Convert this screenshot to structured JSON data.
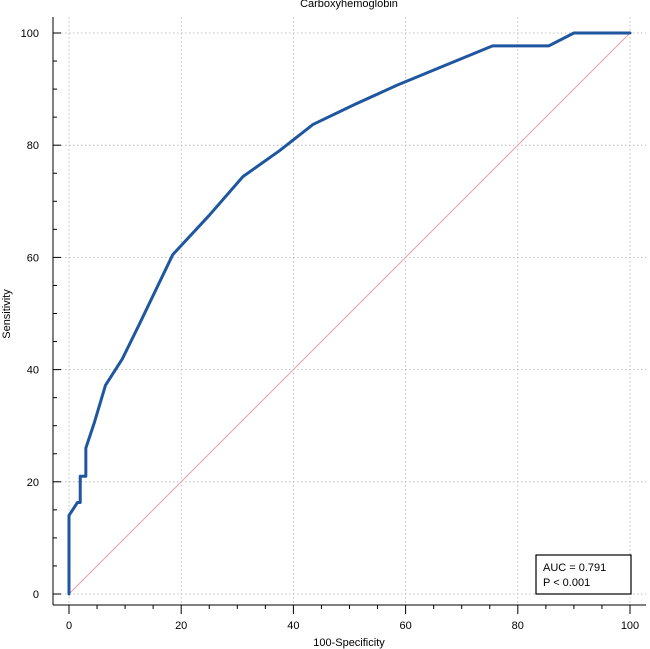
{
  "chart_data": {
    "type": "line",
    "title": "Carboxyhemoglobin",
    "xlabel": "100-Specificity",
    "ylabel": "Sensitivity",
    "xlim": [
      0,
      100
    ],
    "ylim": [
      0,
      100
    ],
    "xticks": [
      0,
      20,
      40,
      60,
      80,
      100
    ],
    "yticks": [
      0,
      20,
      40,
      60,
      80,
      100
    ],
    "grid": true,
    "series": [
      {
        "color": "#1f56a0",
        "x": [
          0,
          0,
          1.5,
          2,
          2,
          3,
          3,
          4.5,
          6.5,
          9.5,
          12.5,
          18.5,
          25,
          31,
          37.5,
          43.5,
          51,
          58.5,
          66.5,
          75.5,
          85.5,
          90,
          100
        ],
        "y": [
          0,
          14,
          16.3,
          16.3,
          21,
          21,
          26,
          30.5,
          37.2,
          41.9,
          48,
          60.5,
          67.5,
          74.4,
          79,
          83.7,
          87.3,
          90.7,
          94,
          97.7,
          97.7,
          100,
          100
        ]
      },
      {
        "color": "#e8a0a8",
        "x": [
          0,
          100
        ],
        "y": [
          0,
          100
        ]
      }
    ],
    "annotation": {
      "auc": "AUC = 0.791",
      "p": "P < 0.001"
    }
  }
}
